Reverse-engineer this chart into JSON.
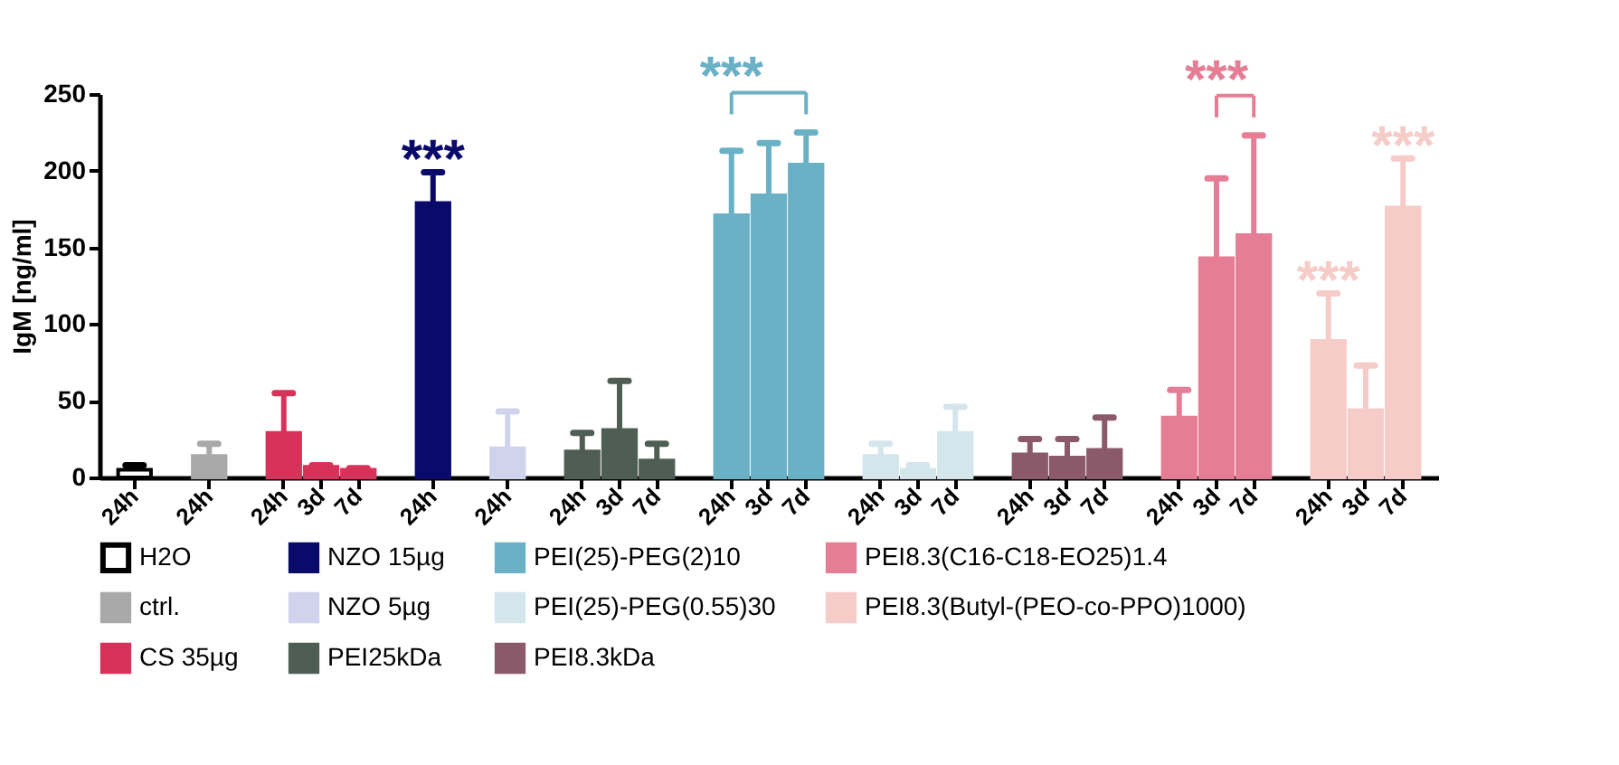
{
  "chart_data": {
    "type": "bar",
    "ylabel": "IgM [ng/ml]",
    "ylim": [
      0,
      250
    ],
    "yticks": [
      0,
      50,
      100,
      150,
      200,
      250
    ],
    "legend": "bottom",
    "categories": [
      "24h",
      null,
      "24h",
      null,
      "24h",
      "3d",
      "7d",
      null,
      "24h",
      null,
      "24h",
      null,
      "24h",
      "3d",
      "7d",
      null,
      "24h",
      "3d",
      "7d",
      null,
      "24h",
      "3d",
      "7d",
      null,
      "24h",
      "3d",
      "7d",
      null,
      "24h",
      "3d",
      "7d",
      null,
      "24h",
      "3d",
      "7d"
    ],
    "annotations": [
      "***",
      "***",
      "***",
      "***",
      "***"
    ],
    "series": [
      {
        "name": "H2O",
        "color": "#ffffff",
        "values": [
          5,
          null,
          null,
          null,
          null,
          null,
          null,
          null,
          null,
          null,
          null,
          null,
          null,
          null,
          null,
          null,
          null,
          null,
          null,
          null,
          null,
          null,
          null,
          null,
          null,
          null,
          null,
          null,
          null,
          null,
          null,
          null,
          null,
          null,
          null
        ],
        "errors": [
          [
            5,
            8
          ],
          null,
          null,
          null,
          null,
          null,
          null,
          null,
          null,
          null,
          null,
          null,
          null,
          null,
          null,
          null,
          null,
          null,
          null,
          null,
          null,
          null,
          null,
          null,
          null,
          null,
          null,
          null,
          null,
          null,
          null,
          null,
          null,
          null,
          null
        ]
      },
      {
        "name": "ctrl.",
        "color": "#a9a9a9",
        "values": [
          null,
          null,
          14,
          null,
          null,
          null,
          null,
          null,
          null,
          null,
          null,
          null,
          null,
          null,
          null,
          null,
          null,
          null,
          null,
          null,
          null,
          null,
          null,
          null,
          null,
          null,
          null,
          null,
          null,
          null,
          null,
          null,
          null,
          null,
          null
        ],
        "errors": [
          null,
          null,
          [
            14,
            22
          ],
          null,
          null,
          null,
          null,
          null,
          null,
          null,
          null,
          null,
          null,
          null,
          null,
          null,
          null,
          null,
          null,
          null,
          null,
          null,
          null,
          null,
          null,
          null,
          null,
          null,
          null,
          null,
          null,
          null,
          null,
          null,
          null
        ]
      },
      {
        "name": "CS 35µg",
        "color": "#d6325a",
        "values": [
          null,
          null,
          null,
          null,
          29,
          7,
          5,
          null,
          null,
          null,
          null,
          null,
          null,
          null,
          null,
          null,
          null,
          null,
          null,
          null,
          null,
          null,
          null,
          null,
          null,
          null,
          null,
          null,
          null,
          null,
          null,
          null,
          null,
          null,
          null
        ],
        "errors": [
          null,
          null,
          null,
          null,
          [
            29,
            55
          ],
          [
            7,
            8
          ],
          [
            5,
            6
          ],
          null,
          null,
          null,
          null,
          null,
          null,
          null,
          null,
          null,
          null,
          null,
          null,
          null,
          null,
          null,
          null,
          null,
          null,
          null,
          null,
          null,
          null,
          null,
          null,
          null,
          null,
          null,
          null
        ]
      },
      {
        "name": "NZO 15µg",
        "color": "#0a0a6b",
        "values": [
          null,
          null,
          null,
          null,
          null,
          null,
          null,
          null,
          179,
          null,
          null,
          null,
          null,
          null,
          null,
          null,
          null,
          null,
          null,
          null,
          null,
          null,
          null,
          null,
          null,
          null,
          null,
          null,
          null,
          null,
          null,
          null,
          null,
          null,
          null
        ],
        "errors": [
          null,
          null,
          null,
          null,
          null,
          null,
          null,
          null,
          [
            179,
            199
          ],
          null,
          null,
          null,
          null,
          null,
          null,
          null,
          null,
          null,
          null,
          null,
          null,
          null,
          null,
          null,
          null,
          null,
          null,
          null,
          null,
          null,
          null,
          null,
          null,
          null,
          null
        ]
      },
      {
        "name": "NZO 5µg",
        "color": "#d0d3ec",
        "values": [
          null,
          null,
          null,
          null,
          null,
          null,
          null,
          null,
          null,
          null,
          19,
          null,
          null,
          null,
          null,
          null,
          null,
          null,
          null,
          null,
          null,
          null,
          null,
          null,
          null,
          null,
          null,
          null,
          null,
          null,
          null,
          null,
          null,
          null,
          null
        ],
        "errors": [
          null,
          null,
          null,
          null,
          null,
          null,
          null,
          null,
          null,
          null,
          [
            19,
            43
          ],
          null,
          null,
          null,
          null,
          null,
          null,
          null,
          null,
          null,
          null,
          null,
          null,
          null,
          null,
          null,
          null,
          null,
          null,
          null,
          null,
          null,
          null,
          null,
          null
        ]
      },
      {
        "name": "PEI25kDa",
        "color": "#4f5e55",
        "values": [
          null,
          null,
          null,
          null,
          null,
          null,
          null,
          null,
          null,
          null,
          null,
          null,
          17,
          31,
          11,
          null,
          null,
          null,
          null,
          null,
          null,
          null,
          null,
          null,
          null,
          null,
          null,
          null,
          null,
          null,
          null,
          null,
          null,
          null,
          null
        ],
        "errors": [
          null,
          null,
          null,
          null,
          null,
          null,
          null,
          null,
          null,
          null,
          null,
          null,
          [
            17,
            29
          ],
          [
            31,
            63
          ],
          [
            11,
            22
          ],
          null,
          null,
          null,
          null,
          null,
          null,
          null,
          null,
          null,
          null,
          null,
          null,
          null,
          null,
          null,
          null,
          null,
          null,
          null,
          null
        ]
      },
      {
        "name": "PEI(25)-PEG(2)10",
        "color": "#6ab1c6",
        "values": [
          null,
          null,
          null,
          null,
          null,
          null,
          null,
          null,
          null,
          null,
          null,
          null,
          null,
          null,
          null,
          null,
          171,
          184,
          204,
          null,
          null,
          null,
          null,
          null,
          null,
          null,
          null,
          null,
          null,
          null,
          null,
          null,
          null,
          null,
          null
        ],
        "errors": [
          null,
          null,
          null,
          null,
          null,
          null,
          null,
          null,
          null,
          null,
          null,
          null,
          null,
          null,
          null,
          null,
          [
            171,
            213
          ],
          [
            184,
            218
          ],
          [
            204,
            225
          ],
          null,
          null,
          null,
          null,
          null,
          null,
          null,
          null,
          null,
          null,
          null,
          null,
          null,
          null,
          null,
          null
        ]
      },
      {
        "name": "PEI(25)-PEG(0.55)30",
        "color": "#d4e6ec",
        "values": [
          null,
          null,
          null,
          null,
          null,
          null,
          null,
          null,
          null,
          null,
          null,
          null,
          null,
          null,
          null,
          null,
          null,
          null,
          null,
          null,
          14,
          5,
          29,
          null,
          null,
          null,
          null,
          null,
          null,
          null,
          null,
          null,
          null,
          null,
          null
        ],
        "errors": [
          null,
          null,
          null,
          null,
          null,
          null,
          null,
          null,
          null,
          null,
          null,
          null,
          null,
          null,
          null,
          null,
          null,
          null,
          null,
          null,
          [
            14,
            22
          ],
          [
            5,
            8
          ],
          [
            29,
            46
          ],
          null,
          null,
          null,
          null,
          null,
          null,
          null,
          null,
          null,
          null,
          null,
          null
        ]
      },
      {
        "name": "PEI8.3kDa",
        "color": "#8a5a6a",
        "values": [
          null,
          null,
          null,
          null,
          null,
          null,
          null,
          null,
          null,
          null,
          null,
          null,
          null,
          null,
          null,
          null,
          null,
          null,
          null,
          null,
          null,
          null,
          null,
          null,
          15,
          13,
          18,
          null,
          null,
          null,
          null,
          null,
          null,
          null,
          null
        ],
        "errors": [
          null,
          null,
          null,
          null,
          null,
          null,
          null,
          null,
          null,
          null,
          null,
          null,
          null,
          null,
          null,
          null,
          null,
          null,
          null,
          null,
          null,
          null,
          null,
          null,
          [
            15,
            25
          ],
          [
            13,
            25
          ],
          [
            18,
            39
          ],
          null,
          null,
          null,
          null,
          null,
          null,
          null,
          null
        ]
      },
      {
        "name": "PEI8.3(C16-C18-EO25)1.4",
        "color": "#e57e95",
        "values": [
          null,
          null,
          null,
          null,
          null,
          null,
          null,
          null,
          null,
          null,
          null,
          null,
          null,
          null,
          null,
          null,
          null,
          null,
          null,
          null,
          null,
          null,
          null,
          null,
          null,
          null,
          null,
          null,
          39,
          143,
          158,
          null,
          null,
          null,
          null
        ],
        "errors": [
          null,
          null,
          null,
          null,
          null,
          null,
          null,
          null,
          null,
          null,
          null,
          null,
          null,
          null,
          null,
          null,
          null,
          null,
          null,
          null,
          null,
          null,
          null,
          null,
          null,
          null,
          null,
          null,
          [
            39,
            57
          ],
          [
            143,
            195
          ],
          [
            158,
            223
          ],
          null,
          null,
          null,
          null
        ]
      },
      {
        "name": "PEI8.3(Butyl-(PEO-co-PPO)1000)",
        "color": "#f6ccc9",
        "values": [
          null,
          null,
          null,
          null,
          null,
          null,
          null,
          null,
          null,
          null,
          null,
          null,
          null,
          null,
          null,
          null,
          null,
          null,
          null,
          null,
          null,
          null,
          null,
          null,
          null,
          null,
          null,
          null,
          null,
          null,
          null,
          null,
          89,
          44,
          176
        ],
        "errors": [
          null,
          null,
          null,
          null,
          null,
          null,
          null,
          null,
          null,
          null,
          null,
          null,
          null,
          null,
          null,
          null,
          null,
          null,
          null,
          null,
          null,
          null,
          null,
          null,
          null,
          null,
          null,
          null,
          null,
          null,
          null,
          null,
          [
            89,
            120
          ],
          [
            44,
            73
          ],
          [
            176,
            208
          ]
        ]
      }
    ]
  }
}
